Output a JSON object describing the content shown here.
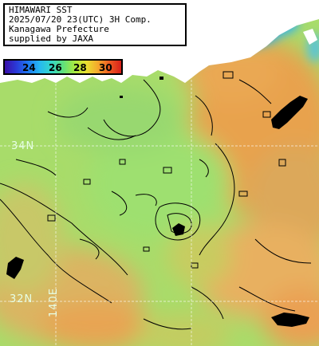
{
  "title": {
    "lines": [
      "HIMAWARI SST",
      "2025/07/20 23(UTC) 3H Comp.",
      "Kanagawa Prefecture",
      "supplied by JAXA"
    ]
  },
  "legend": {
    "labels": [
      "24",
      "26",
      "28",
      "30"
    ],
    "colors": [
      "#3a10a8",
      "#1e78f0",
      "#34d8c8",
      "#a8ea40",
      "#e8e030",
      "#f4a82c",
      "#d8201a"
    ]
  },
  "grid": {
    "lat_labels": [
      "34N",
      "32N"
    ],
    "lon_labels": [
      "140E"
    ]
  },
  "colors": {
    "land": "#ffffff",
    "sea_main": "#a8dc6a",
    "sea_warm": "#eea050",
    "sea_cold": "#3fb8e8",
    "cloud": "#000000"
  }
}
